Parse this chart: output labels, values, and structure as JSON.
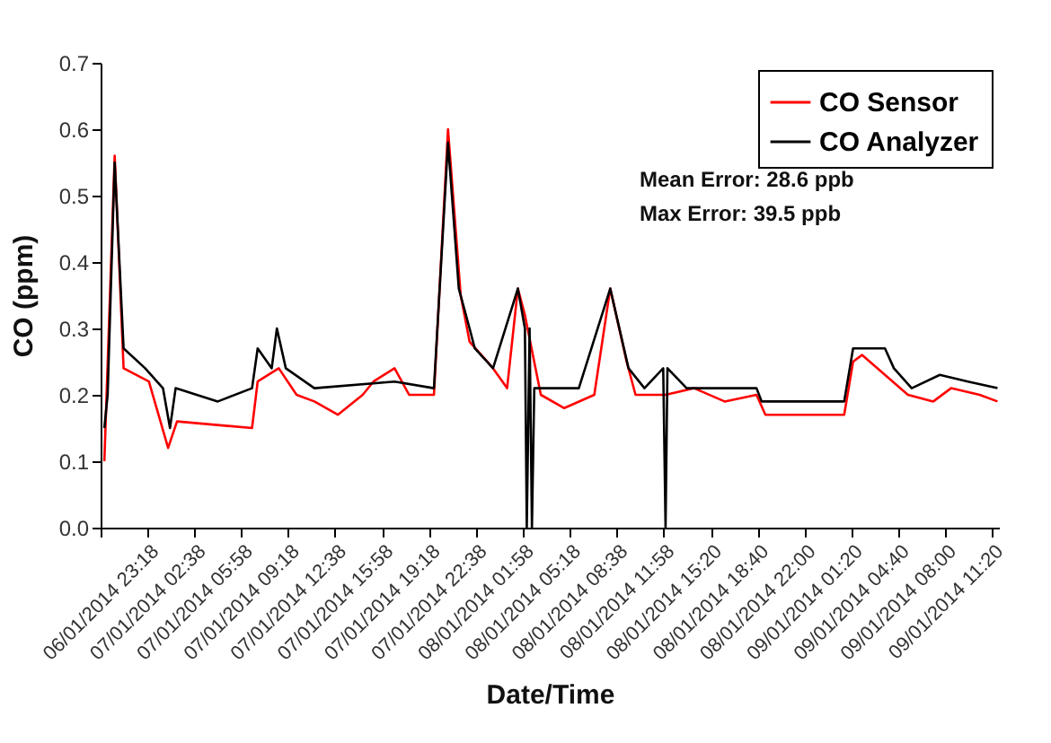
{
  "chart_data": {
    "type": "line",
    "xlabel": "Date/Time",
    "ylabel": "CO (ppm)",
    "xlim": [
      "2014-01-06T19:58",
      "2014-01-09T11:50"
    ],
    "ylim": [
      0,
      0.7
    ],
    "xticks": [
      {
        "value": "2014-01-06T19:58",
        "label": null
      },
      {
        "value": "2014-01-06T23:18",
        "label": "06/01/2014 23:18"
      },
      {
        "value": "2014-01-07T02:38",
        "label": "07/01/2014 02:38"
      },
      {
        "value": "2014-01-07T05:58",
        "label": "07/01/2014 05:58"
      },
      {
        "value": "2014-01-07T09:18",
        "label": "07/01/2014 09:18"
      },
      {
        "value": "2014-01-07T12:38",
        "label": "07/01/2014 12:38"
      },
      {
        "value": "2014-01-07T15:58",
        "label": "07/01/2014 15:58"
      },
      {
        "value": "2014-01-07T19:18",
        "label": "07/01/2014 19:18"
      },
      {
        "value": "2014-01-07T22:38",
        "label": "07/01/2014 22:38"
      },
      {
        "value": "2014-01-08T01:58",
        "label": "08/01/2014 01:58"
      },
      {
        "value": "2014-01-08T05:18",
        "label": "08/01/2014 05:18"
      },
      {
        "value": "2014-01-08T08:38",
        "label": "08/01/2014 08:38"
      },
      {
        "value": "2014-01-08T11:58",
        "label": "08/01/2014 11:58"
      },
      {
        "value": "2014-01-08T15:20",
        "label": "08/01/2014 15:20"
      },
      {
        "value": "2014-01-08T18:40",
        "label": "08/01/2014 18:40"
      },
      {
        "value": "2014-01-08T22:00",
        "label": "08/01/2014 22:00"
      },
      {
        "value": "2014-01-09T01:20",
        "label": "09/01/2014 01:20"
      },
      {
        "value": "2014-01-09T04:40",
        "label": "09/01/2014 04:40"
      },
      {
        "value": "2014-01-09T08:00",
        "label": "09/01/2014 08:00"
      },
      {
        "value": "2014-01-09T11:20",
        "label": "09/01/2014 11:20"
      }
    ],
    "yticks": [
      {
        "value": 0,
        "label": "0.0"
      },
      {
        "value": 0.1,
        "label": "0.1"
      },
      {
        "value": 0.2,
        "label": "0.2"
      },
      {
        "value": 0.3,
        "label": "0.3"
      },
      {
        "value": 0.4,
        "label": "0.4"
      },
      {
        "value": 0.5,
        "label": "0.5"
      },
      {
        "value": 0.6,
        "label": "0.6"
      },
      {
        "value": 0.7,
        "label": "0.7"
      }
    ],
    "grid": false,
    "legend": "top right",
    "marker": "none",
    "line_style": "solid",
    "annotations": [
      "Mean Error: 28.6 ppb",
      "Max Error: 39.5 ppb"
    ],
    "series": [
      {
        "name": "CO Sensor",
        "color": "#ff0000",
        "x": [
          "2014-01-06T20:14",
          "2014-01-06T20:58",
          "2014-01-06T21:36",
          "2014-01-06T23:24",
          "2014-01-07T00:46",
          "2014-01-07T01:24",
          "2014-01-07T06:44",
          "2014-01-07T07:08",
          "2014-01-07T08:38",
          "2014-01-07T09:54",
          "2014-01-07T11:10",
          "2014-01-07T12:50",
          "2014-01-07T14:36",
          "2014-01-07T15:22",
          "2014-01-07T16:52",
          "2014-01-07T17:54",
          "2014-01-07T19:40",
          "2014-01-07T20:40",
          "2014-01-07T21:34",
          "2014-01-07T22:12",
          "2014-01-07T23:28",
          "2014-01-07T23:52",
          "2014-01-08T00:52",
          "2014-01-08T01:38",
          "2014-01-08T02:08",
          "2014-01-08T03:16",
          "2014-01-08T04:56",
          "2014-01-08T07:04",
          "2014-01-08T08:12",
          "2014-01-08T09:22",
          "2014-01-08T10:00",
          "2014-01-08T12:08",
          "2014-01-08T14:10",
          "2014-01-08T16:20",
          "2014-01-08T18:36",
          "2014-01-08T19:14",
          "2014-01-09T00:50",
          "2014-01-09T01:28",
          "2014-01-09T02:06",
          "2014-01-09T03:44",
          "2014-01-09T05:22",
          "2014-01-09T07:10",
          "2014-01-09T08:26",
          "2014-01-09T10:28",
          "2014-01-09T11:44"
        ],
        "values": [
          0.1,
          0.56,
          0.24,
          0.22,
          0.12,
          0.16,
          0.15,
          0.22,
          0.24,
          0.2,
          0.19,
          0.17,
          0.2,
          0.22,
          0.24,
          0.2,
          0.2,
          0.6,
          0.35,
          0.28,
          0.25,
          0.24,
          0.21,
          0.36,
          0.32,
          0.2,
          0.18,
          0.2,
          0.36,
          0.25,
          0.2,
          0.2,
          0.21,
          0.19,
          0.2,
          0.17,
          0.17,
          0.25,
          0.26,
          0.23,
          0.2,
          0.19,
          0.21,
          0.2,
          0.19
        ]
      },
      {
        "name": "CO Analyzer",
        "color": "#000000",
        "x": [
          "2014-01-06T20:14",
          "2014-01-06T20:28",
          "2014-01-06T20:58",
          "2014-01-06T21:36",
          "2014-01-06T23:08",
          "2014-01-07T00:24",
          "2014-01-07T00:54",
          "2014-01-07T01:18",
          "2014-01-07T04:18",
          "2014-01-07T06:44",
          "2014-01-07T07:08",
          "2014-01-07T08:08",
          "2014-01-07T08:30",
          "2014-01-07T09:08",
          "2014-01-07T11:10",
          "2014-01-07T16:52",
          "2014-01-07T19:40",
          "2014-01-07T20:40",
          "2014-01-07T21:26",
          "2014-01-07T22:12",
          "2014-01-07T22:34",
          "2014-01-07T23:52",
          "2014-01-08T01:38",
          "2014-01-08T02:08",
          "2014-01-08T02:16",
          "2014-01-08T02:28",
          "2014-01-08T02:38",
          "2014-01-08T02:48",
          "2014-01-08T05:58",
          "2014-01-08T08:12",
          "2014-01-08T09:30",
          "2014-01-08T10:38",
          "2014-01-08T11:58",
          "2014-01-08T12:08",
          "2014-01-08T12:16",
          "2014-01-08T13:38",
          "2014-01-08T18:36",
          "2014-01-08T18:58",
          "2014-01-09T00:50",
          "2014-01-09T01:28",
          "2014-01-09T03:44",
          "2014-01-09T04:22",
          "2014-01-09T05:38",
          "2014-01-09T07:38",
          "2014-01-09T09:38",
          "2014-01-09T11:44"
        ],
        "values": [
          0.15,
          0.2,
          0.55,
          0.27,
          0.24,
          0.21,
          0.15,
          0.21,
          0.19,
          0.21,
          0.27,
          0.24,
          0.3,
          0.24,
          0.21,
          0.22,
          0.21,
          0.58,
          0.36,
          0.3,
          0.27,
          0.24,
          0.36,
          0.3,
          0.0,
          0.3,
          0.0,
          0.21,
          0.21,
          0.36,
          0.24,
          0.21,
          0.24,
          0.0,
          0.24,
          0.21,
          0.21,
          0.19,
          0.19,
          0.27,
          0.27,
          0.24,
          0.21,
          0.23,
          0.22,
          0.21
        ]
      }
    ]
  }
}
